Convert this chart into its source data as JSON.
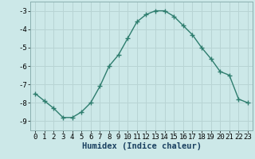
{
  "xlabel": "Humidex (Indice chaleur)",
  "x": [
    0,
    1,
    2,
    3,
    4,
    5,
    6,
    7,
    8,
    9,
    10,
    11,
    12,
    13,
    14,
    15,
    16,
    17,
    18,
    19,
    20,
    21,
    22,
    23
  ],
  "y": [
    -7.5,
    -7.9,
    -8.3,
    -8.8,
    -8.8,
    -8.5,
    -8.0,
    -7.1,
    -6.0,
    -5.4,
    -4.5,
    -3.6,
    -3.2,
    -3.0,
    -3.0,
    -3.3,
    -3.8,
    -4.3,
    -5.0,
    -5.6,
    -6.3,
    -6.5,
    -7.8,
    -8.0
  ],
  "line_color": "#2e7d6e",
  "marker": "+",
  "bg_color": "#cce8e8",
  "grid_color": "#b8d4d4",
  "ylim": [
    -9.5,
    -2.5
  ],
  "xlim": [
    -0.5,
    23.5
  ],
  "yticks": [
    -9,
    -8,
    -7,
    -6,
    -5,
    -4,
    -3
  ],
  "xticks": [
    0,
    1,
    2,
    3,
    4,
    5,
    6,
    7,
    8,
    9,
    10,
    11,
    12,
    13,
    14,
    15,
    16,
    17,
    18,
    19,
    20,
    21,
    22,
    23
  ],
  "tick_fontsize": 6.5,
  "xlabel_fontsize": 7.5,
  "linewidth": 1.0,
  "markersize": 4,
  "markeredgewidth": 1.0
}
